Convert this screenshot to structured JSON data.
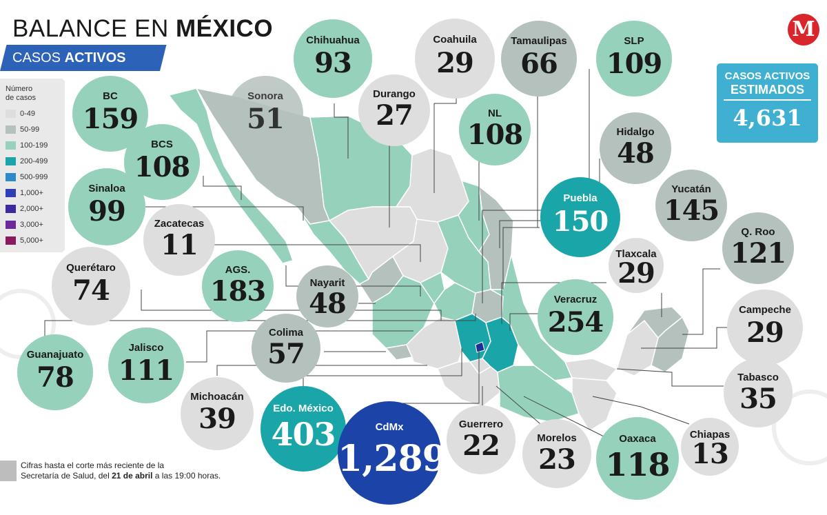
{
  "header": {
    "title_light": "BALANCE EN ",
    "title_bold": "MÉXICO",
    "subtitle_light": "CASOS ",
    "subtitle_bold": "ACTIVOS"
  },
  "legend": {
    "title_line1": "Número",
    "title_line2": "de casos",
    "items": [
      {
        "label": "0-49",
        "color": "#dedede"
      },
      {
        "label": "50-99",
        "color": "#b5c1bd"
      },
      {
        "label": "100-199",
        "color": "#96d1bc"
      },
      {
        "label": "200-499",
        "color": "#1aa6a8"
      },
      {
        "label": "500-999",
        "color": "#2d8ac9"
      },
      {
        "label": "1,000+",
        "color": "#2f3fb5"
      },
      {
        "label": "2,000+",
        "color": "#3b2aa0"
      },
      {
        "label": "3,000+",
        "color": "#6a2a9a"
      },
      {
        "label": "5,000+",
        "color": "#8a1a60"
      }
    ]
  },
  "estimate": {
    "line1": "CASOS ACTIVOS",
    "line2": "ESTIMADOS",
    "value": "4,631"
  },
  "logo": {
    "letter": "M"
  },
  "note": {
    "line1": "Cifras hasta el corte más reciente de la",
    "line2_pre": "Secretaría de Salud, del ",
    "line2_bold": "21 de abril",
    "line2_post": " a las 19:00 horas."
  },
  "states": [
    {
      "name": "BC",
      "value": "159",
      "color": "#96d1bc"
    },
    {
      "name": "Sonora",
      "value": "51",
      "color": "#b5c1bd"
    },
    {
      "name": "Chihuahua",
      "value": "93",
      "color": "#96d1bc"
    },
    {
      "name": "Coahuila",
      "value": "29",
      "color": "#dedede"
    },
    {
      "name": "Durango",
      "value": "27",
      "color": "#dedede"
    },
    {
      "name": "Tamaulipas",
      "value": "66",
      "color": "#b5c1bd"
    },
    {
      "name": "SLP",
      "value": "109",
      "color": "#96d1bc"
    },
    {
      "name": "NL",
      "value": "108",
      "color": "#96d1bc"
    },
    {
      "name": "Hidalgo",
      "value": "48",
      "color": "#b5c1bd"
    },
    {
      "name": "BCS",
      "value": "108",
      "color": "#96d1bc"
    },
    {
      "name": "Sinaloa",
      "value": "99",
      "color": "#96d1bc"
    },
    {
      "name": "Zacatecas",
      "value": "11",
      "color": "#dedede"
    },
    {
      "name": "Puebla",
      "value": "150",
      "color": "#1aa6a8"
    },
    {
      "name": "Yucatán",
      "value": "145",
      "color": "#b5c1bd"
    },
    {
      "name": "Q. Roo",
      "value": "121",
      "color": "#b5c1bd"
    },
    {
      "name": "Tlaxcala",
      "value": "29",
      "color": "#dedede"
    },
    {
      "name": "Querétaro",
      "value": "74",
      "color": "#dedede"
    },
    {
      "name": "AGS.",
      "value": "183",
      "color": "#96d1bc"
    },
    {
      "name": "Nayarit",
      "value": "48",
      "color": "#b5c1bd"
    },
    {
      "name": "Veracruz",
      "value": "254",
      "color": "#96d1bc"
    },
    {
      "name": "Campeche",
      "value": "29",
      "color": "#dedede"
    },
    {
      "name": "Guanajuato",
      "value": "78",
      "color": "#96d1bc"
    },
    {
      "name": "Jalisco",
      "value": "111",
      "color": "#96d1bc"
    },
    {
      "name": "Colima",
      "value": "57",
      "color": "#b5c1bd"
    },
    {
      "name": "Tabasco",
      "value": "35",
      "color": "#dedede"
    },
    {
      "name": "Michoacán",
      "value": "39",
      "color": "#dedede"
    },
    {
      "name": "Edo. México",
      "value": "403",
      "color": "#1aa6a8"
    },
    {
      "name": "CdMx",
      "value": "1,289",
      "color": "#1c43a8"
    },
    {
      "name": "Guerrero",
      "value": "22",
      "color": "#dedede"
    },
    {
      "name": "Morelos",
      "value": "23",
      "color": "#dedede"
    },
    {
      "name": "Oaxaca",
      "value": "118",
      "color": "#96d1bc"
    },
    {
      "name": "Chiapas",
      "value": "13",
      "color": "#dedede"
    }
  ]
}
